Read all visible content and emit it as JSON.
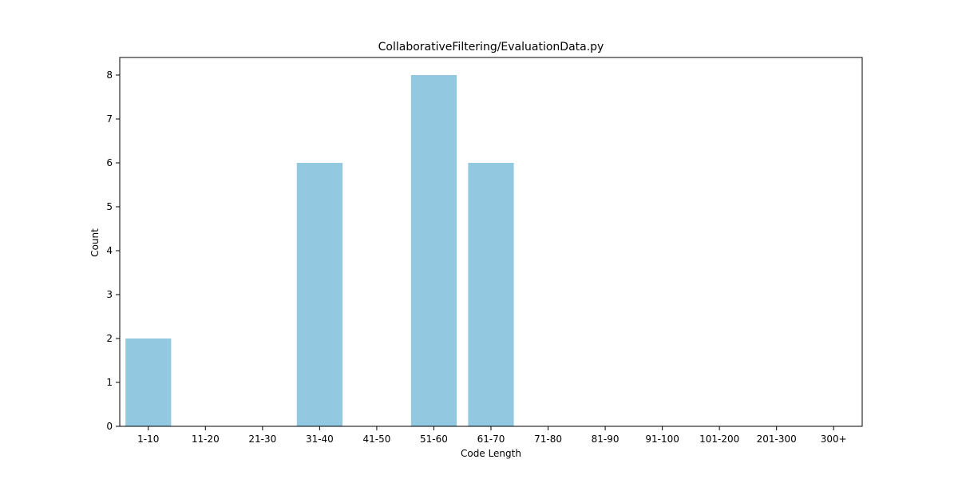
{
  "chart_data": {
    "type": "bar",
    "title": "CollaborativeFiltering/EvaluationData.py",
    "xlabel": "Code Length",
    "ylabel": "Count",
    "categories": [
      "1-10",
      "11-20",
      "21-30",
      "31-40",
      "41-50",
      "51-60",
      "61-70",
      "71-80",
      "81-90",
      "91-100",
      "101-200",
      "201-300",
      "300+"
    ],
    "values": [
      2,
      0,
      0,
      6,
      0,
      8,
      6,
      0,
      0,
      0,
      0,
      0,
      0
    ],
    "ylim": [
      0,
      8.4
    ],
    "yticks": [
      0,
      1,
      2,
      3,
      4,
      5,
      6,
      7,
      8
    ],
    "bar_color": "#92c9e0",
    "grid": false,
    "legend": "none"
  }
}
